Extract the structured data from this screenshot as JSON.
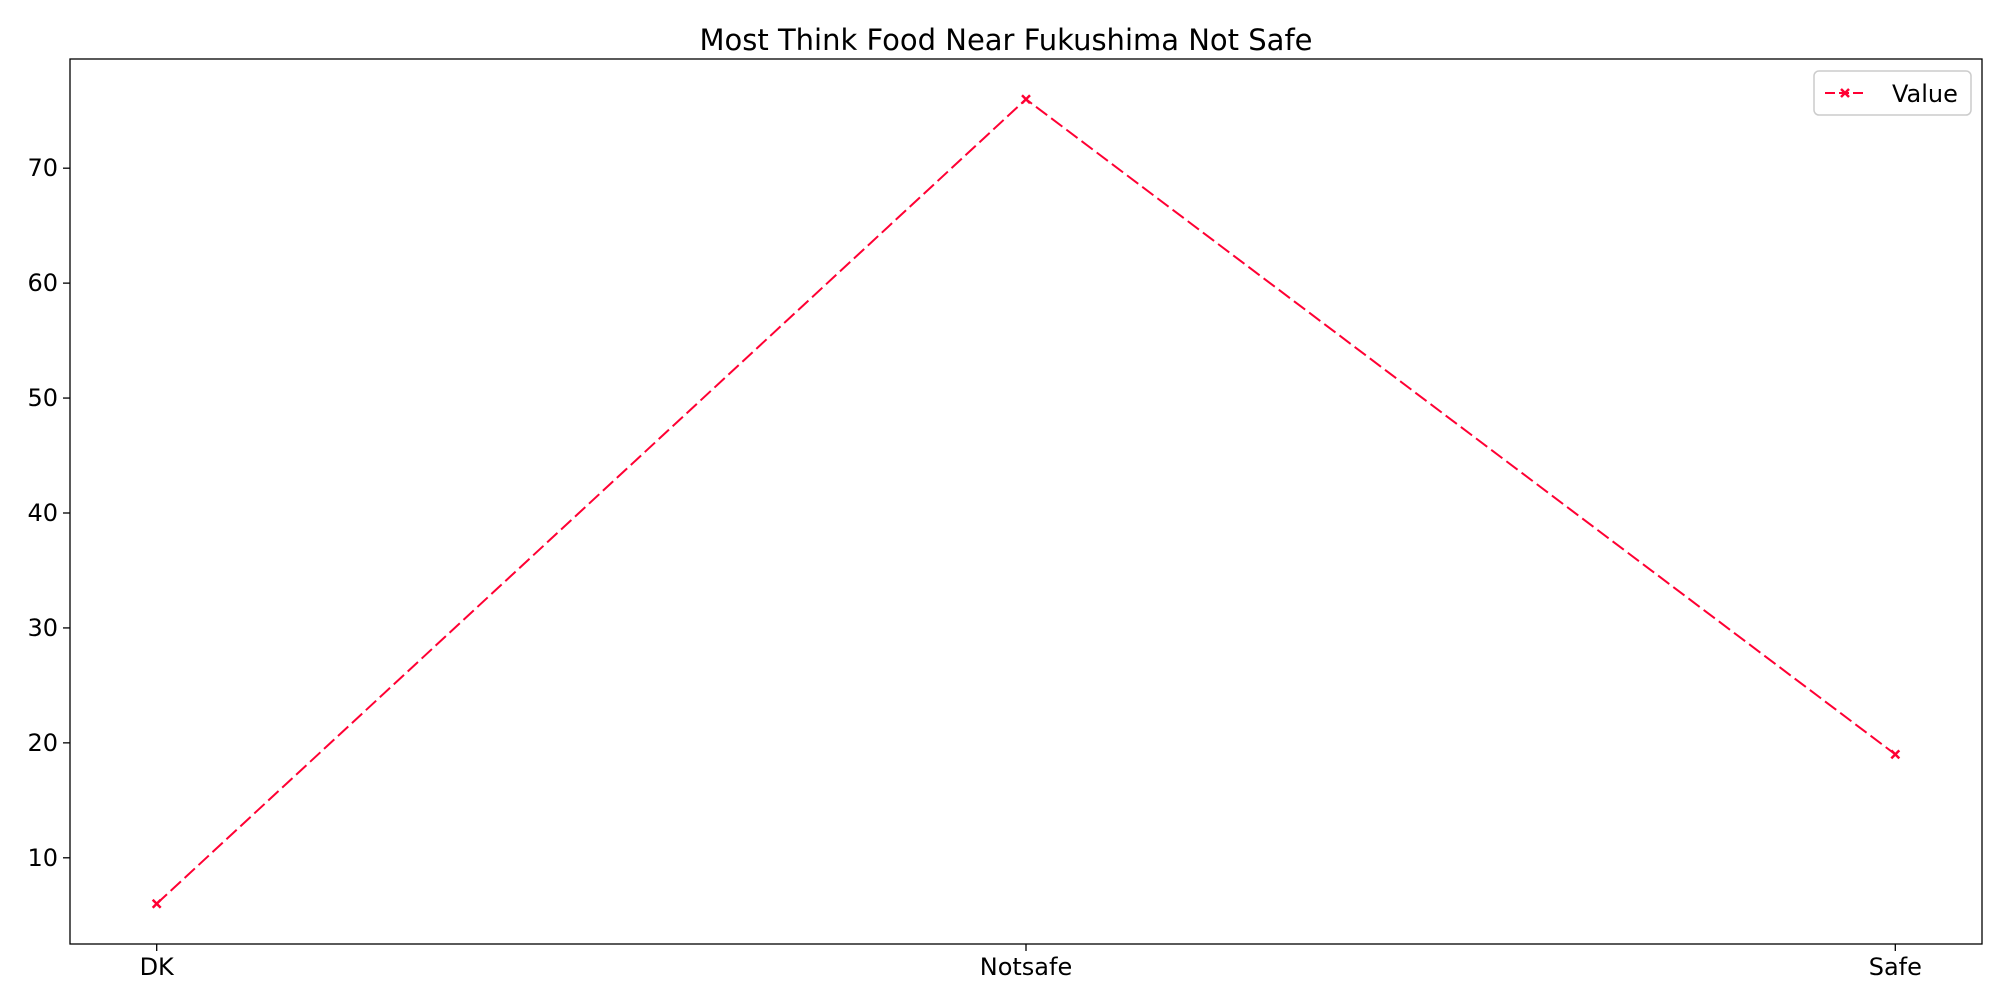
{
  "chart_data": {
    "type": "line",
    "title": "Most Think Food Near Fukushima Not Safe",
    "xlabel": "",
    "ylabel": "",
    "categories": [
      "DK",
      "Notsafe",
      "Safe"
    ],
    "series": [
      {
        "name": "Value",
        "values": [
          6,
          76,
          19
        ],
        "color": "#ff0033",
        "line_style": "dashed",
        "marker": "x"
      }
    ],
    "ylim": [
      2.5,
      79.5
    ],
    "yticks": [
      10,
      20,
      30,
      40,
      50,
      60,
      70
    ],
    "grid": false,
    "legend": {
      "position": "top-right",
      "entries": [
        "Value"
      ]
    }
  }
}
